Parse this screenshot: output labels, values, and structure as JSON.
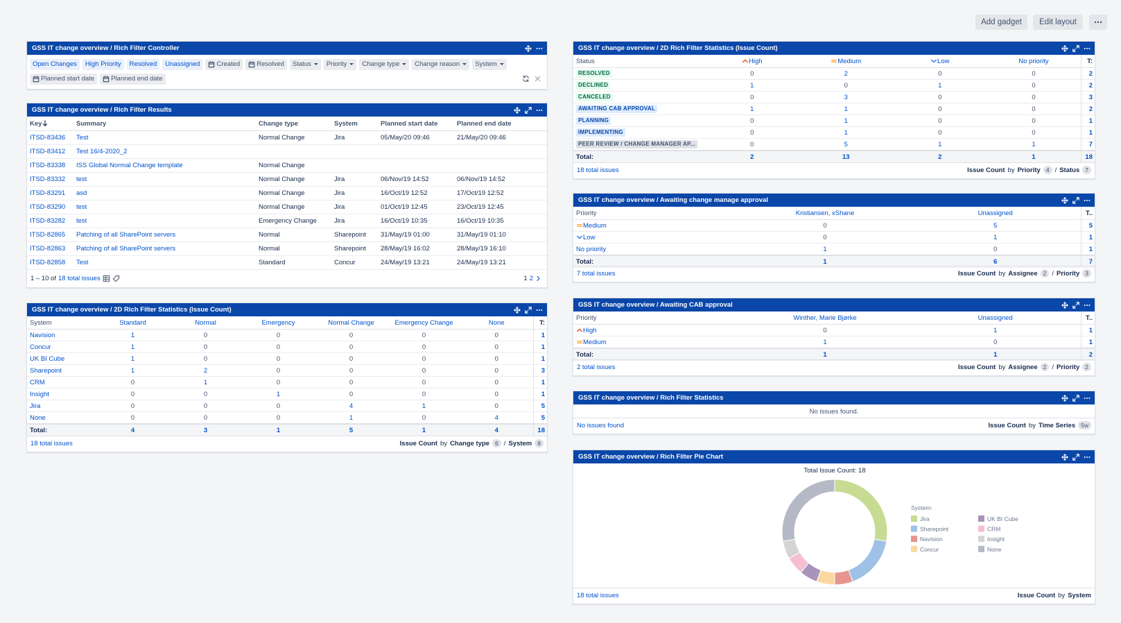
{
  "toolbar": {
    "add_gadget": "Add gadget",
    "edit_layout": "Edit layout"
  },
  "controller": {
    "title": "GSS IT change overview / Rich Filter Controller",
    "quick_filters": [
      "Open Changes",
      "High Priority",
      "Resolved",
      "Unassigned"
    ],
    "date_filters": [
      "Created",
      "Resolved",
      "Planned start date",
      "Planned end date"
    ],
    "select_filters": [
      "Status",
      "Priority",
      "Change type",
      "Change reason",
      "System"
    ]
  },
  "results": {
    "title": "GSS IT change overview / Rich Filter Results",
    "columns": [
      "Key",
      "Summary",
      "Change type",
      "System",
      "Planned start date",
      "Planned end date"
    ],
    "rows": [
      [
        "ITSD-83436",
        "Test",
        "Normal Change",
        "Jira",
        "05/May/20 09:46",
        "21/May/20 09:46"
      ],
      [
        "ITSD-83412",
        "Test 16/4-2020_2",
        null,
        null,
        null,
        null
      ],
      [
        "ITSD-83338",
        "ISS Global Normal Change template",
        "Normal Change",
        null,
        null,
        null
      ],
      [
        "ITSD-83332",
        "test",
        "Normal Change",
        "Jira",
        "06/Nov/19 14:52",
        "06/Nov/19 14:52"
      ],
      [
        "ITSD-83291",
        "asd",
        "Normal Change",
        "Jira",
        "16/Oct/19 12:52",
        "17/Oct/19 12:52"
      ],
      [
        "ITSD-83290",
        "test",
        "Normal Change",
        "Jira",
        "01/Oct/19 12:45",
        "23/Oct/19 12:45"
      ],
      [
        "ITSD-83282",
        "test",
        "Emergency Change",
        "Jira",
        "16/Oct/19 10:35",
        "16/Oct/19 10:35"
      ],
      [
        "ITSD-82865",
        "Patching of all SharePoint servers",
        "Normal",
        "Sharepoint",
        "31/May/19 01:00",
        "31/May/19 01:10"
      ],
      [
        "ITSD-82863",
        "Patching of all SharePoint servers",
        "Normal",
        "Sharepoint",
        "28/May/19 16:02",
        "28/May/19 16:10"
      ],
      [
        "ITSD-82858",
        "Test",
        "Standard",
        "Concur",
        "24/May/19 13:21",
        "24/May/19 13:21"
      ]
    ],
    "footer": {
      "range": "1 – 10 of",
      "total": "18 total issues",
      "pages": [
        1,
        2
      ]
    }
  },
  "system_stats": {
    "title": "GSS IT change overview / 2D Rich Filter Statistics (Issue Count)",
    "corner": "System",
    "columns": [
      {
        "name": "Standard"
      },
      {
        "name": "Normal"
      },
      {
        "name": "Emergency"
      },
      {
        "name": "Normal Change"
      },
      {
        "name": "Emergency Change"
      },
      {
        "name": "None"
      }
    ],
    "total_header": "T:",
    "rows": [
      {
        "label": "Navision",
        "values": [
          1,
          0,
          0,
          0,
          0,
          0
        ],
        "total": 1
      },
      {
        "label": "Concur",
        "values": [
          1,
          0,
          0,
          0,
          0,
          0
        ],
        "total": 1
      },
      {
        "label": "UK BI Cube",
        "values": [
          1,
          0,
          0,
          0,
          0,
          0
        ],
        "total": 1
      },
      {
        "label": "Sharepoint",
        "values": [
          1,
          2,
          0,
          0,
          0,
          0
        ],
        "total": 3
      },
      {
        "label": "CRM",
        "values": [
          0,
          1,
          0,
          0,
          0,
          0
        ],
        "total": 1
      },
      {
        "label": "Insight",
        "values": [
          0,
          0,
          1,
          0,
          0,
          0
        ],
        "total": 1
      },
      {
        "label": "Jira",
        "values": [
          0,
          0,
          0,
          4,
          1,
          0
        ],
        "total": 5
      },
      {
        "label": "None",
        "values": [
          0,
          0,
          0,
          1,
          0,
          4
        ],
        "total": 5
      }
    ],
    "totals": {
      "label": "Total:",
      "values": [
        4,
        3,
        1,
        5,
        1,
        4
      ],
      "total": 18
    },
    "footer": {
      "total": "18 total issues",
      "measure": "Issue Count",
      "by": "by",
      "sep": "/",
      "dims": [
        {
          "name": "Change type",
          "count": 6
        },
        {
          "name": "System",
          "count": 8
        }
      ]
    }
  },
  "status_stats": {
    "title": "GSS IT change overview / 2D Rich Filter Statistics (Issue Count)",
    "corner": "Status",
    "columns": [
      {
        "name": "High",
        "icon": "up"
      },
      {
        "name": "Medium",
        "icon": "equal"
      },
      {
        "name": "Low",
        "icon": "down"
      },
      {
        "name": "No priority"
      }
    ],
    "total_header": "T:",
    "rows": [
      {
        "label": "RESOLVED",
        "lozenge": "green",
        "values": [
          0,
          2,
          0,
          0
        ],
        "total": 2
      },
      {
        "label": "DECLINED",
        "lozenge": "green",
        "values": [
          1,
          0,
          1,
          0
        ],
        "total": 2
      },
      {
        "label": "CANCELED",
        "lozenge": "green",
        "values": [
          0,
          3,
          0,
          0
        ],
        "total": 3
      },
      {
        "label": "AWAITING CAB APPROVAL",
        "lozenge": "blue",
        "values": [
          1,
          1,
          0,
          0
        ],
        "total": 2
      },
      {
        "label": "PLANNING",
        "lozenge": "blue",
        "values": [
          0,
          1,
          0,
          0
        ],
        "total": 1
      },
      {
        "label": "IMPLEMENTING",
        "lozenge": "blue",
        "values": [
          0,
          1,
          0,
          0
        ],
        "total": 1
      },
      {
        "label": "PEER REVIEW / CHANGE MANAGER AP...",
        "lozenge": "gray",
        "values": [
          0,
          5,
          1,
          1
        ],
        "total": 7
      }
    ],
    "totals": {
      "label": "Total:",
      "values": [
        2,
        13,
        2,
        1
      ],
      "total": 18
    },
    "footer": {
      "total": "18 total issues",
      "measure": "Issue Count",
      "by": "by",
      "sep": "/",
      "dims": [
        {
          "name": "Priority",
          "count": 4
        },
        {
          "name": "Status",
          "count": 7
        }
      ]
    }
  },
  "manager_approval": {
    "title": "GSS IT change overview / Awaiting change manage approval",
    "corner": "Priority",
    "columns": [
      {
        "name": "Kristiansen, xShane"
      },
      {
        "name": "Unassigned"
      }
    ],
    "total_header": "T..",
    "rows": [
      {
        "label": "Medium",
        "icon": "equal",
        "values": [
          0,
          5
        ],
        "total": 5
      },
      {
        "label": "Low",
        "icon": "down",
        "values": [
          0,
          1
        ],
        "total": 1
      },
      {
        "label": "No priority",
        "values": [
          1,
          0
        ],
        "total": 1
      }
    ],
    "totals": {
      "label": "Total:",
      "values": [
        1,
        6
      ],
      "total": 7
    },
    "footer": {
      "total": "7 total issues",
      "measure": "Issue Count",
      "by": "by",
      "sep": "/",
      "dims": [
        {
          "name": "Assignee",
          "count": 2
        },
        {
          "name": "Priority",
          "count": 3
        }
      ]
    }
  },
  "cab_approval": {
    "title": "GSS IT change overview / Awaiting CAB approval",
    "corner": "Priority",
    "columns": [
      {
        "name": "Winther, Marie Bjørke"
      },
      {
        "name": "Unassigned"
      }
    ],
    "total_header": "T..",
    "rows": [
      {
        "label": "High",
        "icon": "up",
        "values": [
          0,
          1
        ],
        "total": 1
      },
      {
        "label": "Medium",
        "icon": "equal",
        "values": [
          1,
          0
        ],
        "total": 1
      }
    ],
    "totals": {
      "label": "Total:",
      "values": [
        1,
        1
      ],
      "total": 2
    },
    "footer": {
      "total": "2 total issues",
      "measure": "Issue Count",
      "by": "by",
      "sep": "/",
      "dims": [
        {
          "name": "Assignee",
          "count": 2
        },
        {
          "name": "Priority",
          "count": 2
        }
      ]
    }
  },
  "rich_stats": {
    "title": "GSS IT change overview / Rich Filter Statistics",
    "message": "No issues found.",
    "footer": {
      "total": "No issues found",
      "measure": "Issue Count",
      "by": "by",
      "dims": [
        {
          "name": "Time Series",
          "count": "5w"
        }
      ]
    }
  },
  "pie_gadget": {
    "title": "GSS IT change overview / Rich Filter Pie Chart",
    "footer": {
      "total": "18 total issues",
      "measure": "Issue Count",
      "by": "by",
      "dims": [
        {
          "name": "System"
        }
      ]
    }
  },
  "chart_data": {
    "type": "pie",
    "title": "Total Issue Count: 18",
    "legend_title": "System:",
    "categories": [
      "Jira",
      "Sharepoint",
      "Navision",
      "Concur",
      "UK BI Cube",
      "CRM",
      "Insight",
      "None"
    ],
    "values": [
      5,
      3,
      1,
      1,
      1,
      1,
      1,
      5
    ],
    "colors": [
      "#c8db93",
      "#9fc1e6",
      "#e8948f",
      "#fcd8a0",
      "#a894b8",
      "#f5bfd2",
      "#d4d4d4",
      "#b4b9c5"
    ]
  }
}
